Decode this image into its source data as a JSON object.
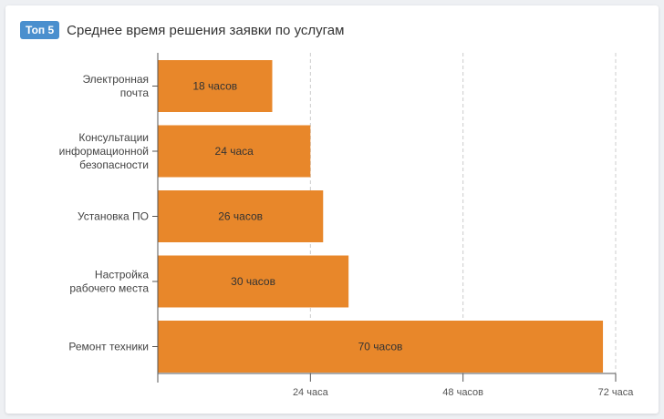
{
  "header": {
    "badge": "Топ 5",
    "title": "Среднее время решения заявки по услугам"
  },
  "colors": {
    "bar": "#e8872a",
    "badge": "#4a8fce",
    "grid": "#cccccc",
    "axis": "#555555"
  },
  "chart_data": {
    "type": "bar",
    "orientation": "horizontal",
    "categories": [
      [
        "Электронная",
        "почта"
      ],
      [
        "Консультации",
        "информационной",
        "безопасности"
      ],
      [
        "Установка ПО"
      ],
      [
        "Настройка",
        "рабочего места"
      ],
      [
        "Ремонт техники"
      ]
    ],
    "values": [
      18,
      24,
      26,
      30,
      70
    ],
    "value_labels": [
      "18 часов",
      "24 часа",
      "26 часов",
      "30 часов",
      "70 часов"
    ],
    "xlim": [
      0,
      72
    ],
    "ticks": [
      24,
      48,
      72
    ],
    "tick_labels": [
      "24 часа",
      "48 часов",
      "72 часа"
    ],
    "grid": true
  }
}
